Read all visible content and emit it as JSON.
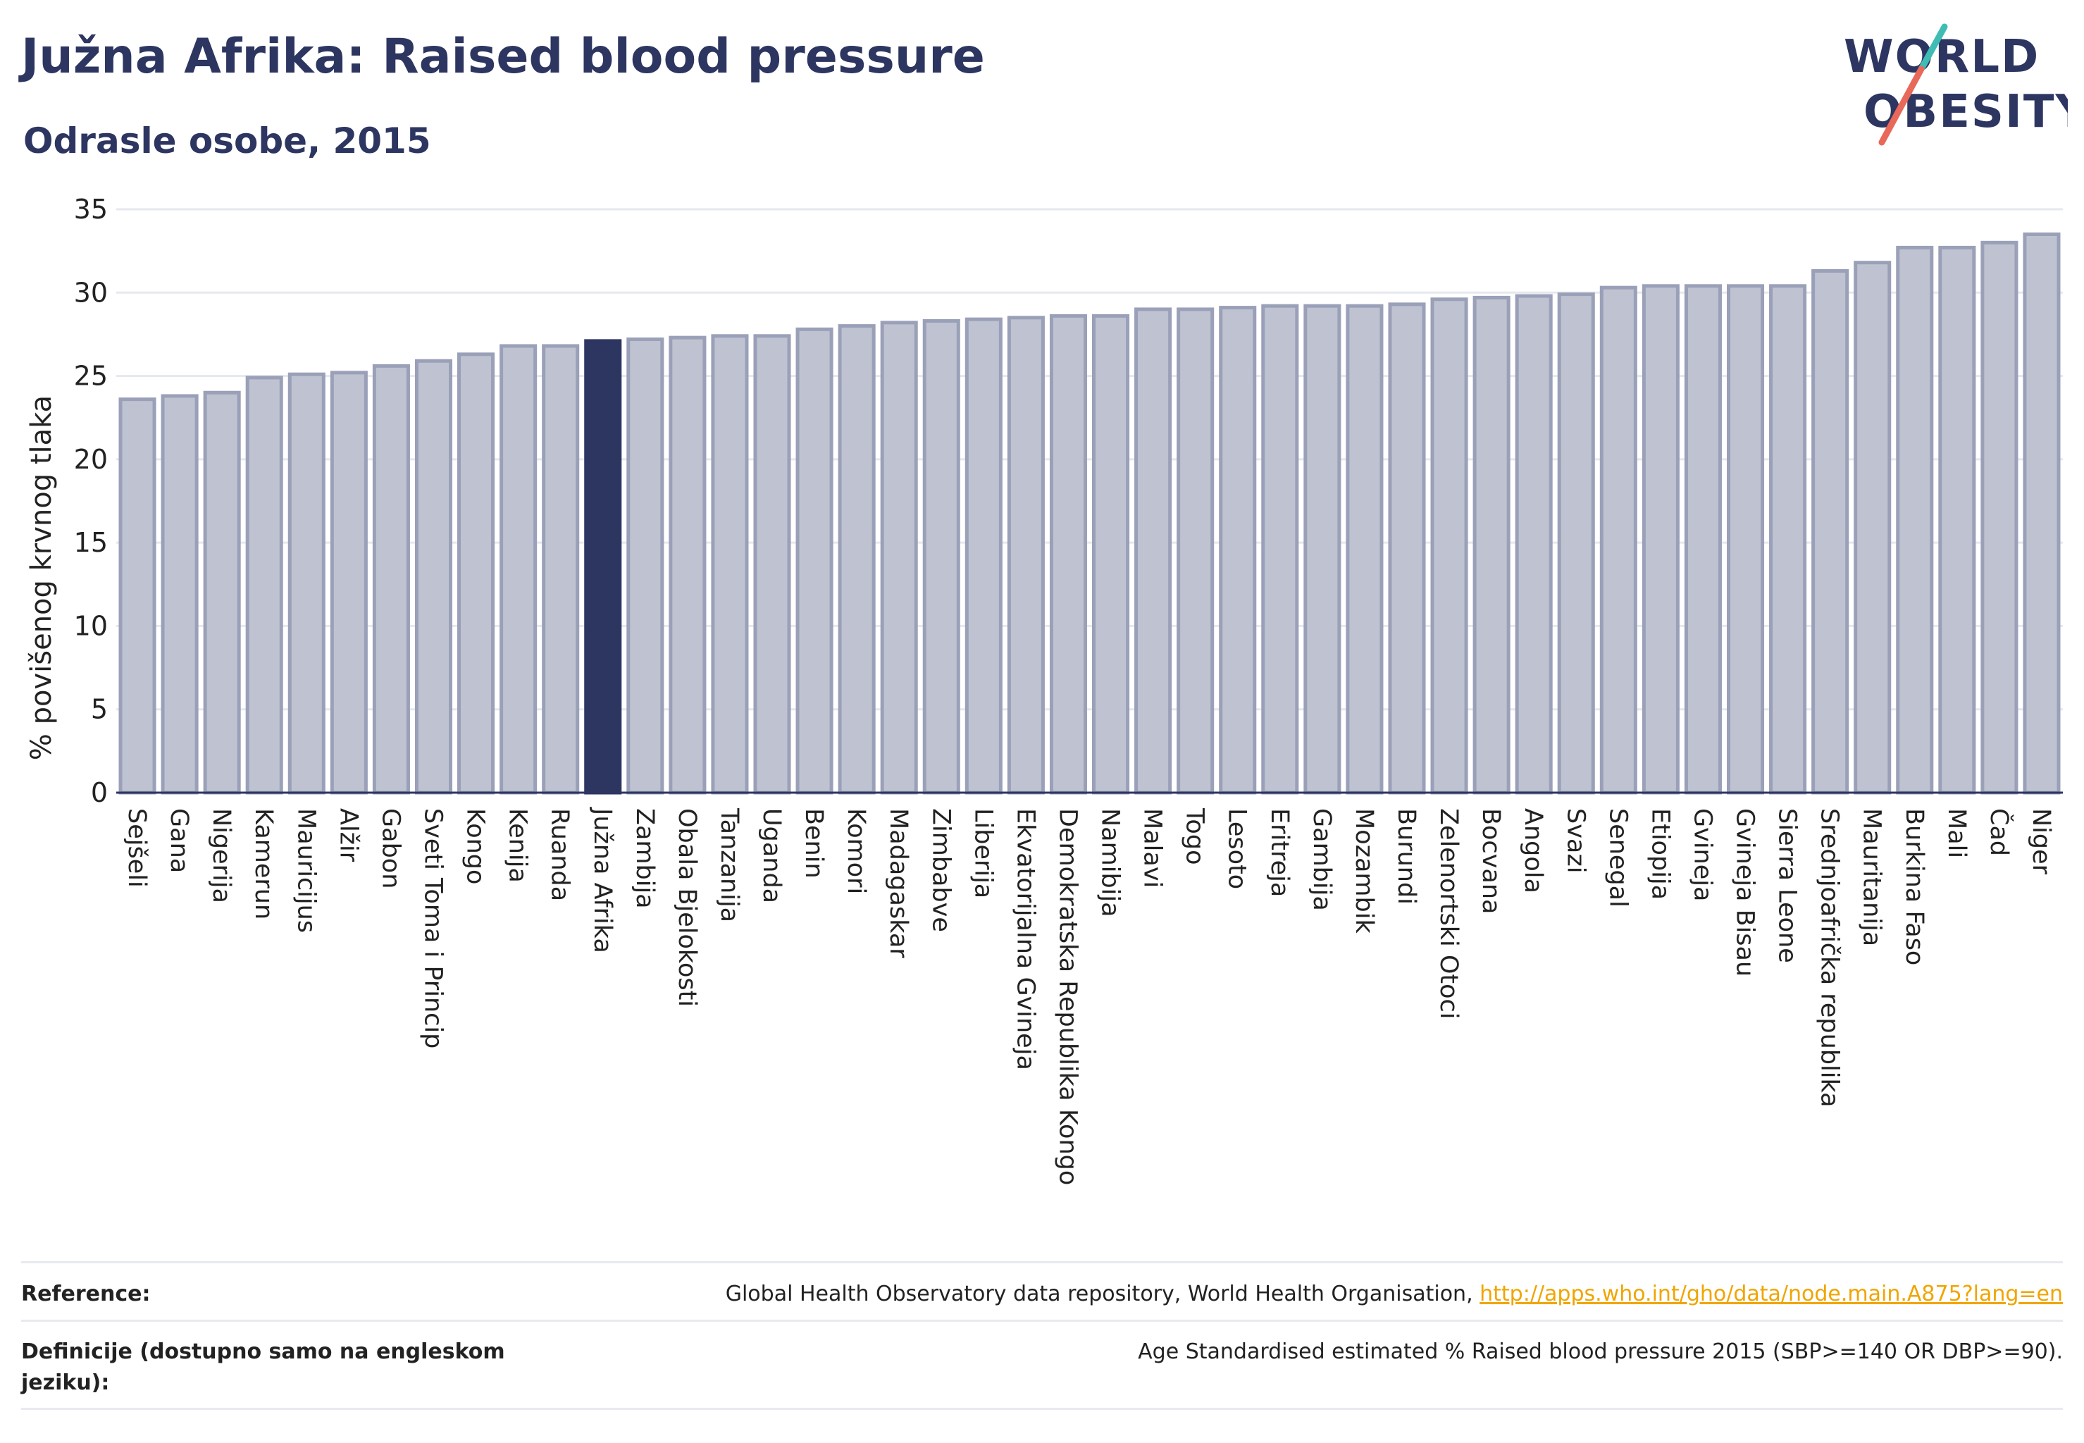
{
  "header": {
    "title": "Južna Afrika: Raised blood pressure",
    "subtitle": "Odrasle osobe, 2015"
  },
  "logo": {
    "line1": "WORLD",
    "line2": "OBESITY"
  },
  "footer": {
    "reference_label": "Reference:",
    "reference_text": "Global Health Observatory data repository, World Health Organisation, ",
    "reference_link": "http://apps.who.int/gho/data/node.main.A875?lang=en",
    "definition_label": "Definicije (dostupno samo na engleskom jeziku):",
    "definition_text": "Age Standardised estimated % Raised blood pressure 2015 (SBP>=140 OR DBP>=90)."
  },
  "colors": {
    "bar": "#bfc3d1",
    "bar_border": "#9aa0b8",
    "highlight": "#2d3561",
    "grid": "#e6e8ef",
    "title": "#2d3561",
    "logo_stroke_teal": "#3fbdb5",
    "logo_stroke_red": "#e8685a"
  },
  "chart_data": {
    "type": "bar",
    "ylabel": "% povišenog krvnog tlaka",
    "xlabel": "",
    "ylim": [
      0,
      35
    ],
    "yticks": [
      "0",
      "5",
      "10",
      "15",
      "20",
      "25",
      "30",
      "35"
    ],
    "highlight": "Južna Afrika",
    "grid": true,
    "categories": [
      "Sejšeli",
      "Gana",
      "Nigerija",
      "Kamerun",
      "Mauricijus",
      "Alžir",
      "Gabon",
      "Sveti Toma i Princip",
      "Kongo",
      "Kenija",
      "Ruanda",
      "Južna Afrika",
      "Zambija",
      "Obala Bjelokosti",
      "Tanzanija",
      "Uganda",
      "Benin",
      "Komori",
      "Madagaskar",
      "Zimbabve",
      "Liberija",
      "Ekvatorijalna Gvineja",
      "Demokratska Republika Kongo",
      "Namibija",
      "Malavi",
      "Togo",
      "Lesoto",
      "Eritreja",
      "Gambija",
      "Mozambik",
      "Burundi",
      "Zelenortski Otoci",
      "Bocvana",
      "Angola",
      "Svazi",
      "Senegal",
      "Etiopija",
      "Gvineja",
      "Gvineja Bisau",
      "Sierra Leone",
      "Srednjoafrička republika",
      "Mauritanija",
      "Burkina Faso",
      "Mali",
      "Čad",
      "Niger"
    ],
    "values": [
      23.6,
      23.8,
      24.0,
      24.9,
      25.1,
      25.2,
      25.6,
      25.9,
      26.3,
      26.8,
      26.8,
      27.1,
      27.2,
      27.3,
      27.4,
      27.4,
      27.8,
      28.0,
      28.2,
      28.3,
      28.4,
      28.5,
      28.6,
      28.6,
      29.0,
      29.0,
      29.1,
      29.2,
      29.2,
      29.2,
      29.3,
      29.6,
      29.7,
      29.8,
      29.9,
      30.3,
      30.4,
      30.4,
      30.4,
      30.4,
      31.3,
      31.8,
      32.7,
      32.7,
      33.0,
      33.5
    ]
  }
}
